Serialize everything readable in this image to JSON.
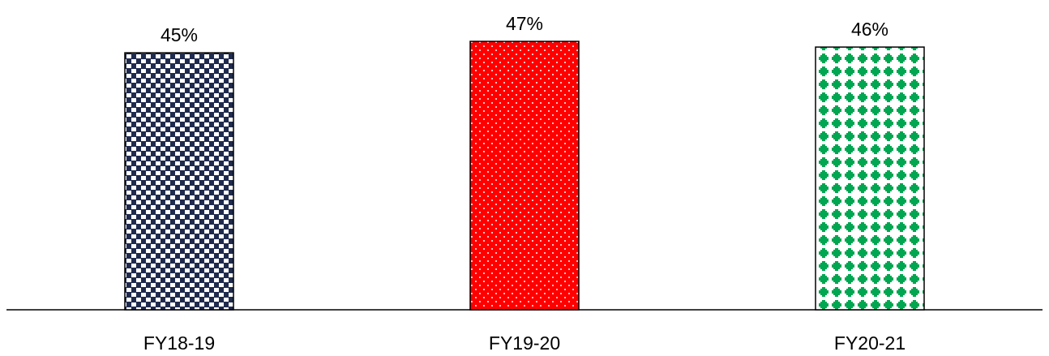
{
  "chart_data": {
    "type": "bar",
    "title": "",
    "xlabel": "",
    "ylabel": "",
    "categories": [
      "FY18-19",
      "FY19-20",
      "FY20-21"
    ],
    "values": [
      45,
      47,
      46
    ],
    "value_labels": [
      "45%",
      "47%",
      "46%"
    ],
    "ylim": [
      0,
      47
    ],
    "grid": false,
    "legend": "none",
    "bar_styles": [
      {
        "pattern": "checkered",
        "primary": "#1f2a4d",
        "secondary": "#ffffff"
      },
      {
        "pattern": "dotted",
        "primary": "#ff0000",
        "secondary": "#ffffff"
      },
      {
        "pattern": "plus-diamond",
        "primary": "#00a651",
        "secondary": "#ffffff"
      }
    ]
  }
}
